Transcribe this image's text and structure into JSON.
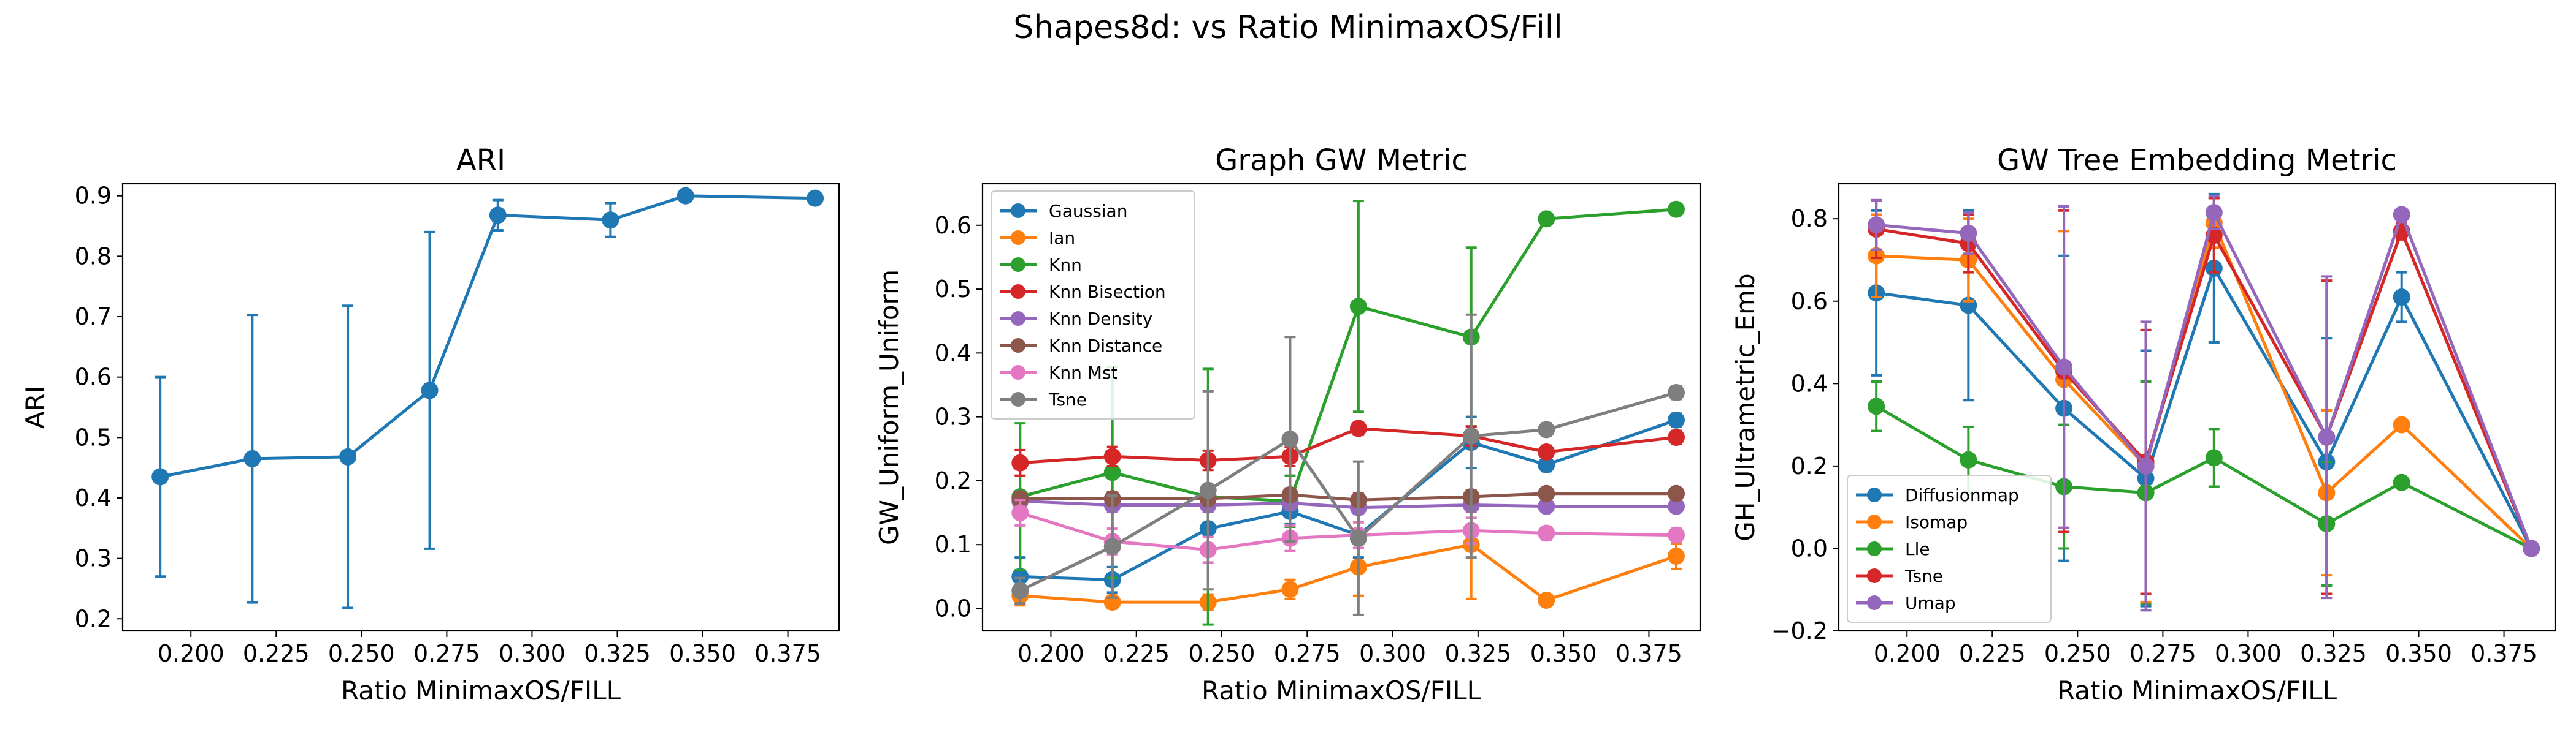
{
  "suptitle": "Shapes8d: vs Ratio MinimaxOS/Fill",
  "colors": {
    "Gaussian": "#1f77b4",
    "Ian": "#ff7f0e",
    "Knn": "#2ca02c",
    "Knn Bisection": "#d62728",
    "Knn Density": "#9467bd",
    "Knn Distance": "#8c564b",
    "Knn Mst": "#e377c2",
    "Tsne": "#7f7f7f",
    "Diffusionmap": "#1f77b4",
    "Isomap": "#ff7f0e",
    "Lle": "#2ca02c",
    "Umap": "#9467bd"
  },
  "chart_data": [
    {
      "type": "line",
      "title": "ARI",
      "xlabel": "Ratio MinimaxOS/FILL",
      "ylabel": "ARI",
      "xlim": [
        0.18,
        0.39
      ],
      "ylim": [
        0.18,
        0.92
      ],
      "xticks": [
        0.2,
        0.225,
        0.25,
        0.275,
        0.3,
        0.325,
        0.35,
        0.375
      ],
      "xtick_labels": [
        "0.200",
        "0.225",
        "0.250",
        "0.275",
        "0.300",
        "0.325",
        "0.350",
        "0.375"
      ],
      "yticks": [
        0.2,
        0.3,
        0.4,
        0.5,
        0.6,
        0.7,
        0.8,
        0.9
      ],
      "ytick_labels": [
        "0.2",
        "0.3",
        "0.4",
        "0.5",
        "0.6",
        "0.7",
        "0.8",
        "0.9"
      ],
      "legend": null,
      "x": [
        0.191,
        0.218,
        0.246,
        0.27,
        0.29,
        0.323,
        0.345,
        0.383
      ],
      "series": [
        {
          "name": "ARI",
          "color": "#1f77b4",
          "values": [
            0.435,
            0.465,
            0.468,
            0.578,
            0.868,
            0.86,
            0.9,
            0.896
          ],
          "errors": [
            0.165,
            0.238,
            0.25,
            0.262,
            0.025,
            0.028,
            0.0,
            0.0
          ]
        }
      ]
    },
    {
      "type": "line",
      "title": "Graph GW Metric",
      "xlabel": "Ratio MinimaxOS/FILL",
      "ylabel": "GW_Uniform_Uniform",
      "xlim": [
        0.18,
        0.39
      ],
      "ylim": [
        -0.035,
        0.665
      ],
      "xticks": [
        0.2,
        0.225,
        0.25,
        0.275,
        0.3,
        0.325,
        0.35,
        0.375
      ],
      "xtick_labels": [
        "0.200",
        "0.225",
        "0.250",
        "0.275",
        "0.300",
        "0.325",
        "0.350",
        "0.375"
      ],
      "yticks": [
        0.0,
        0.1,
        0.2,
        0.3,
        0.4,
        0.5,
        0.6
      ],
      "ytick_labels": [
        "0.0",
        "0.1",
        "0.2",
        "0.3",
        "0.4",
        "0.5",
        "0.6"
      ],
      "legend": "upper-left",
      "x": [
        0.191,
        0.218,
        0.246,
        0.27,
        0.29,
        0.323,
        0.345,
        0.383
      ],
      "series": [
        {
          "name": "Gaussian",
          "color": "#1f77b4",
          "values": [
            0.05,
            0.045,
            0.125,
            0.152,
            0.115,
            0.26,
            0.225,
            0.295
          ],
          "errors": [
            0.03,
            0.02,
            0.03,
            0.02,
            0.035,
            0.04,
            0.01,
            0.01
          ]
        },
        {
          "name": "Ian",
          "color": "#ff7f0e",
          "values": [
            0.02,
            0.01,
            0.01,
            0.03,
            0.065,
            0.1,
            0.013,
            0.082
          ],
          "errors": [
            0.015,
            0.01,
            0.012,
            0.015,
            0.045,
            0.085,
            0.005,
            0.02
          ]
        },
        {
          "name": "Knn",
          "color": "#2ca02c",
          "values": [
            0.175,
            0.213,
            0.175,
            0.168,
            0.473,
            0.425,
            0.61,
            0.625
          ],
          "errors": [
            0.115,
            0.165,
            0.2,
            0.04,
            0.165,
            0.14,
            0.0,
            0.0
          ]
        },
        {
          "name": "Knn Bisection",
          "color": "#d62728",
          "values": [
            0.228,
            0.238,
            0.232,
            0.238,
            0.282,
            0.27,
            0.245,
            0.268
          ],
          "errors": [
            0.02,
            0.015,
            0.015,
            0.015,
            0.01,
            0.015,
            0.01,
            0.01
          ]
        },
        {
          "name": "Knn Density",
          "color": "#9467bd",
          "values": [
            0.168,
            0.162,
            0.162,
            0.165,
            0.158,
            0.162,
            0.16,
            0.16
          ],
          "errors": [
            0.01,
            0.01,
            0.01,
            0.01,
            0.01,
            0.01,
            0.005,
            0.005
          ]
        },
        {
          "name": "Knn Distance",
          "color": "#8c564b",
          "values": [
            0.172,
            0.172,
            0.172,
            0.178,
            0.17,
            0.175,
            0.18,
            0.18
          ],
          "errors": [
            0.01,
            0.01,
            0.01,
            0.01,
            0.01,
            0.01,
            0.005,
            0.005
          ]
        },
        {
          "name": "Knn Mst",
          "color": "#e377c2",
          "values": [
            0.15,
            0.105,
            0.092,
            0.11,
            0.115,
            0.122,
            0.118,
            0.115
          ],
          "errors": [
            0.02,
            0.02,
            0.02,
            0.02,
            0.02,
            0.02,
            0.01,
            0.01
          ]
        },
        {
          "name": "Tsne",
          "color": "#7f7f7f",
          "values": [
            0.028,
            0.097,
            0.185,
            0.265,
            0.11,
            0.27,
            0.28,
            0.338
          ],
          "errors": [
            0.02,
            0.08,
            0.155,
            0.16,
            0.12,
            0.19,
            0.01,
            0.01
          ]
        }
      ]
    },
    {
      "type": "line",
      "title": "GW Tree Embedding Metric",
      "xlabel": "Ratio MinimaxOS/FILL",
      "ylabel": "GH_Ultrametric_Emb",
      "xlim": [
        0.18,
        0.39
      ],
      "ylim": [
        -0.2,
        0.885
      ],
      "xticks": [
        0.2,
        0.225,
        0.25,
        0.275,
        0.3,
        0.325,
        0.35,
        0.375
      ],
      "xtick_labels": [
        "0.200",
        "0.225",
        "0.250",
        "0.275",
        "0.300",
        "0.325",
        "0.350",
        "0.375"
      ],
      "yticks": [
        -0.2,
        0.0,
        0.2,
        0.4,
        0.6,
        0.8
      ],
      "ytick_labels": [
        "−0.2",
        "0.0",
        "0.2",
        "0.4",
        "0.6",
        "0.8"
      ],
      "legend": "lower-left",
      "x": [
        0.191,
        0.218,
        0.246,
        0.27,
        0.29,
        0.323,
        0.345,
        0.383
      ],
      "series": [
        {
          "name": "Diffusionmap",
          "color": "#1f77b4",
          "values": [
            0.62,
            0.59,
            0.34,
            0.17,
            0.68,
            0.21,
            0.61,
            0.0
          ],
          "errors": [
            0.2,
            0.23,
            0.37,
            0.31,
            0.18,
            0.3,
            0.06,
            0.0
          ]
        },
        {
          "name": "Isomap",
          "color": "#ff7f0e",
          "values": [
            0.71,
            0.7,
            0.41,
            0.2,
            0.79,
            0.135,
            0.3,
            0.0
          ],
          "errors": [
            0.1,
            0.1,
            0.36,
            0.33,
            0.06,
            0.2,
            0.01,
            0.0
          ]
        },
        {
          "name": "Lle",
          "color": "#2ca02c",
          "values": [
            0.345,
            0.215,
            0.15,
            0.135,
            0.22,
            0.06,
            0.16,
            0.0
          ],
          "errors": [
            0.06,
            0.08,
            0.15,
            0.27,
            0.07,
            0.15,
            0.01,
            0.0
          ]
        },
        {
          "name": "Tsne",
          "color": "#d62728",
          "values": [
            0.775,
            0.74,
            0.43,
            0.21,
            0.76,
            0.27,
            0.77,
            0.0
          ],
          "errors": [
            0.07,
            0.07,
            0.39,
            0.32,
            0.09,
            0.38,
            0.02,
            0.0
          ]
        },
        {
          "name": "Umap",
          "color": "#9467bd",
          "values": [
            0.785,
            0.765,
            0.44,
            0.2,
            0.815,
            0.27,
            0.81,
            0.0
          ],
          "errors": [
            0.06,
            0.05,
            0.39,
            0.35,
            0.04,
            0.39,
            0.01,
            0.0
          ]
        }
      ]
    }
  ]
}
